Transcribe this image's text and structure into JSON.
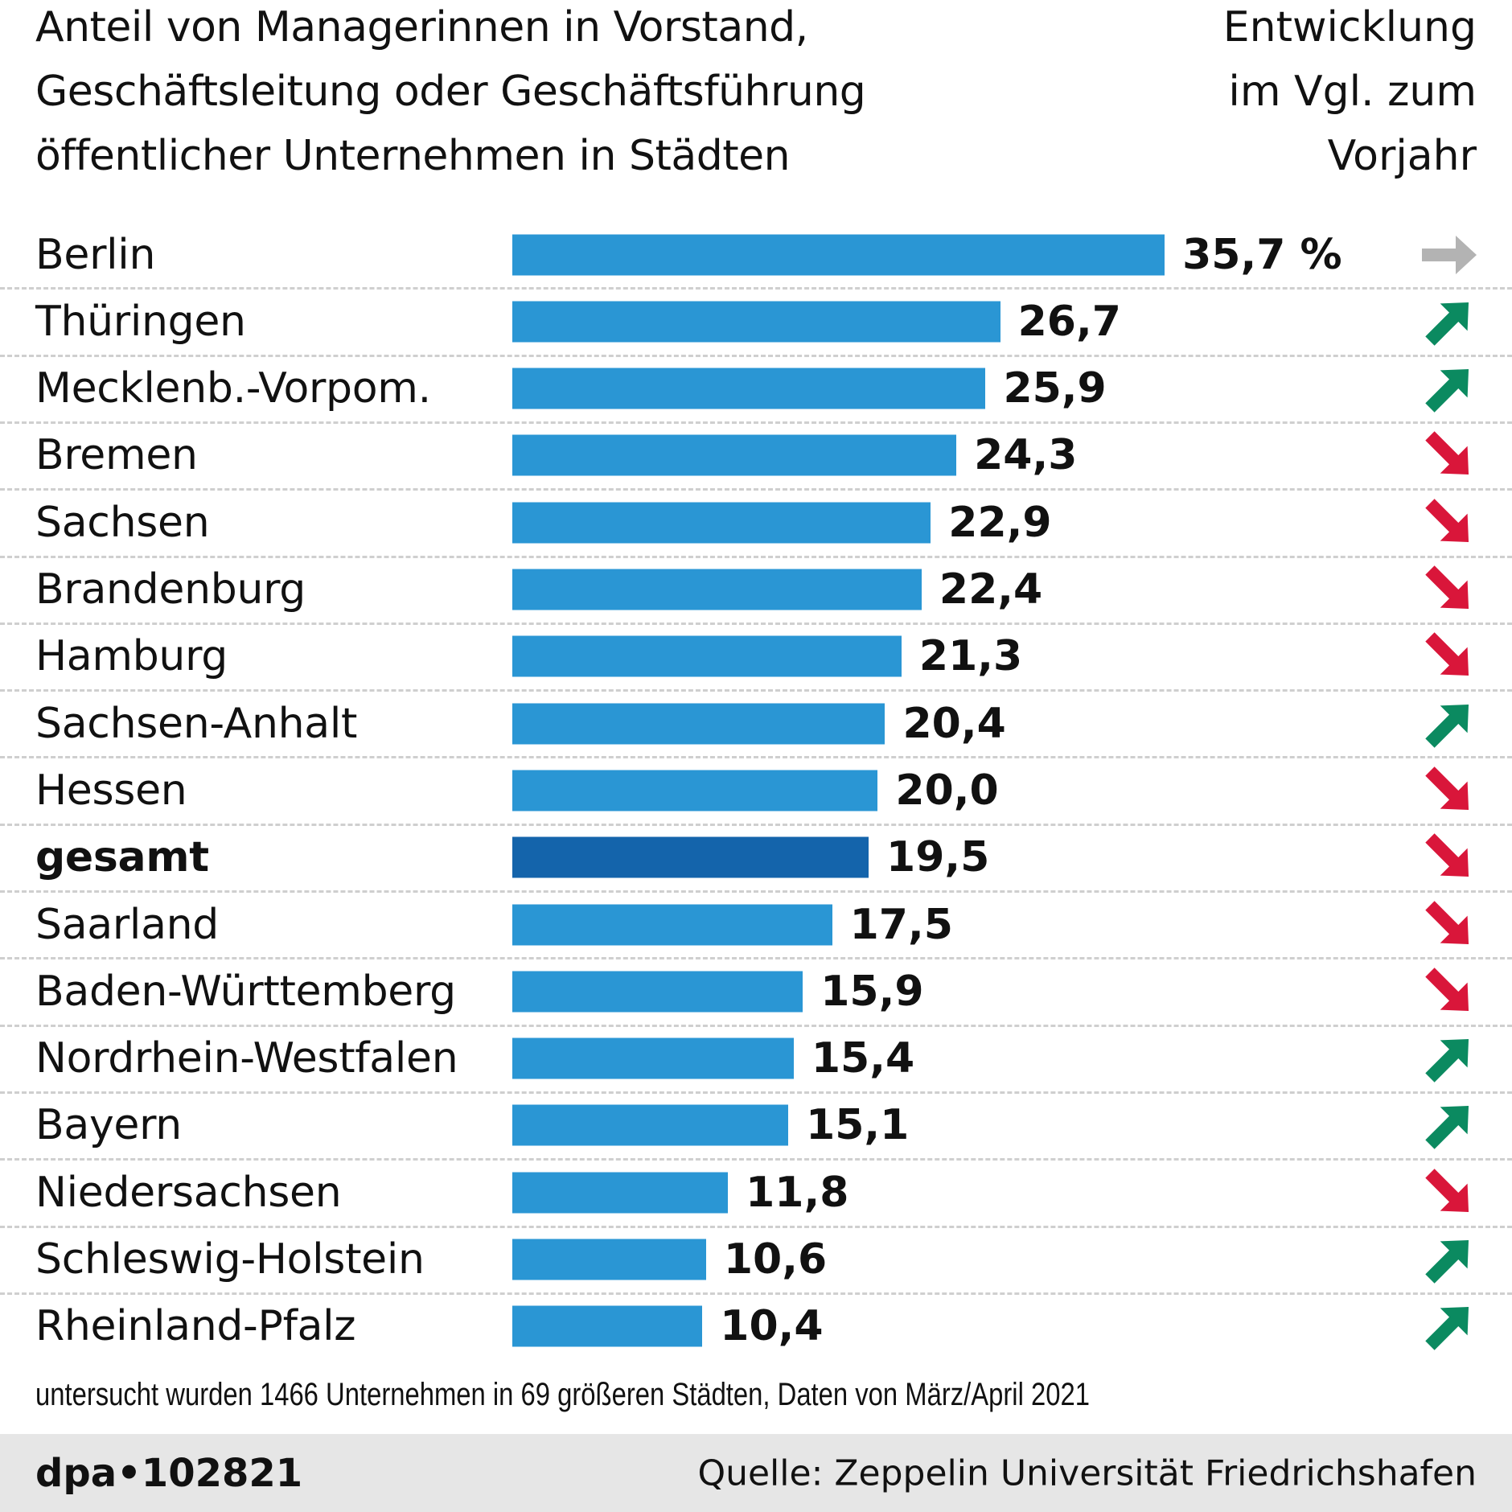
{
  "header": {
    "title_lines": [
      "Anteil von Managerinnen in Vorstand,",
      "Geschäftsleitung oder Geschäftsführung",
      "öffentlicher Unternehmen in Städten"
    ],
    "trend_heading_lines": [
      "Entwicklung",
      "im Vgl. zum",
      "Vorjahr"
    ]
  },
  "chart_data": {
    "type": "bar",
    "orientation": "horizontal",
    "categories": [
      "Berlin",
      "Thüringen",
      "Mecklenb.-Vorpom.",
      "Bremen",
      "Sachsen",
      "Brandenburg",
      "Hamburg",
      "Sachsen-Anhalt",
      "Hessen",
      "gesamt",
      "Saarland",
      "Baden-Württemberg",
      "Nordrhein-Westfalen",
      "Bayern",
      "Niedersachsen",
      "Schleswig-Holstein",
      "Rheinland-Pfalz"
    ],
    "values": [
      35.7,
      26.7,
      25.9,
      24.3,
      22.9,
      22.4,
      21.3,
      20.4,
      20.0,
      19.5,
      17.5,
      15.9,
      15.4,
      15.1,
      11.8,
      10.6,
      10.4
    ],
    "value_labels": [
      "35,7 %",
      "26,7",
      "25,9",
      "24,3",
      "22,9",
      "22,4",
      "21,3",
      "20,4",
      "20,0",
      "19,5",
      "17,5",
      "15,9",
      "15,4",
      "15,1",
      "11,8",
      "10,6",
      "10,4"
    ],
    "trend": [
      "same",
      "up",
      "up",
      "down",
      "down",
      "down",
      "down",
      "up",
      "down",
      "down",
      "down",
      "down",
      "up",
      "up",
      "down",
      "up",
      "up"
    ],
    "highlight": "gesamt",
    "unit": "%",
    "grid": false,
    "colors": {
      "bar": "#2a96d4",
      "highlight": "#1464ab",
      "up": "#0b8a60",
      "down": "#d9163a",
      "same": "#b3b3b3"
    }
  },
  "footnote": "untersucht wurden 1466 Unternehmen in 69 größeren Städten, Daten von März/April 2021",
  "footer": {
    "agency_id": "dpa•102821",
    "source": "Quelle: Zeppelin Universität Friedrichshafen"
  }
}
